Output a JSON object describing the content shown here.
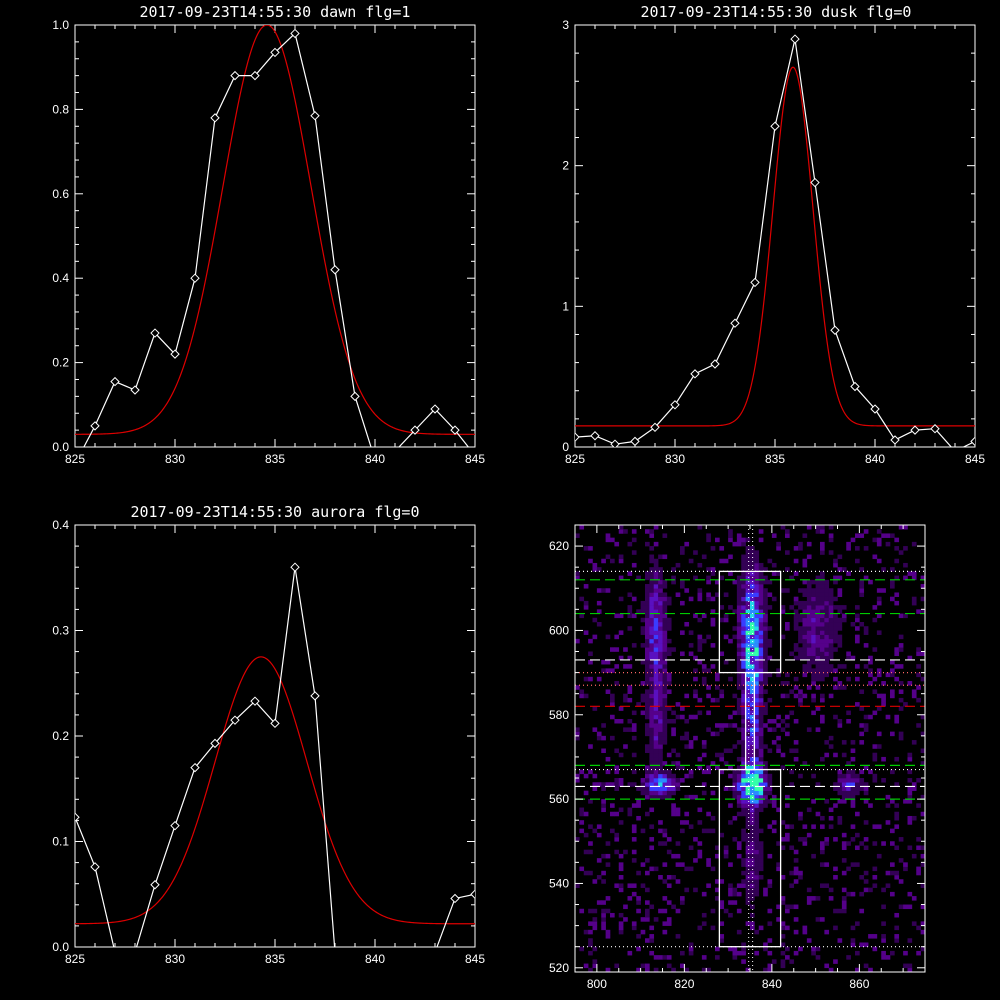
{
  "colors": {
    "background": "#000000",
    "axis": "#ffffff",
    "data_line": "#ffffff",
    "fit_line": "#dd0000",
    "green_lines": "#00cc00",
    "red_line": "#dd0000",
    "white_dashed": "#ffffff"
  },
  "chart_data": [
    {
      "id": "dawn",
      "type": "line",
      "title": "2017-09-23T14:55:30 dawn flg=1",
      "xlim": [
        825,
        845
      ],
      "ylim": [
        0,
        1.0
      ],
      "xticks": [
        "825",
        "830",
        "835",
        "840",
        "845"
      ],
      "yticks": [
        "0.0",
        "0.2",
        "0.4",
        "0.6",
        "0.8",
        "1.0"
      ],
      "series": [
        {
          "role": "data",
          "marker": "diamond",
          "x": [
            825,
            826,
            827,
            828,
            829,
            830,
            831,
            832,
            833,
            834,
            835,
            836,
            837,
            838,
            839,
            840,
            841,
            842,
            843,
            844,
            845
          ],
          "y": [
            -0.04,
            0.05,
            0.155,
            0.135,
            0.27,
            0.22,
            0.4,
            0.78,
            0.88,
            0.88,
            0.935,
            0.98,
            0.785,
            0.42,
            0.12,
            -0.03,
            -0.01,
            0.04,
            0.09,
            0.04,
            -0.02
          ]
        },
        {
          "role": "fit",
          "gaussian": {
            "amp": 0.97,
            "center": 834.6,
            "sigma": 2.2,
            "offset": 0.03
          }
        }
      ]
    },
    {
      "id": "dusk",
      "type": "line",
      "title": "2017-09-23T14:55:30 dusk flg=0",
      "xlim": [
        825,
        845
      ],
      "ylim": [
        0,
        3
      ],
      "xticks": [
        "825",
        "830",
        "835",
        "840",
        "845"
      ],
      "yticks": [
        "0",
        "1",
        "2",
        "3"
      ],
      "series": [
        {
          "role": "data",
          "marker": "diamond",
          "x": [
            825,
            826,
            827,
            828,
            829,
            830,
            831,
            832,
            833,
            834,
            835,
            836,
            837,
            838,
            839,
            840,
            841,
            842,
            843,
            844,
            845
          ],
          "y": [
            0.07,
            0.08,
            0.02,
            0.04,
            0.14,
            0.3,
            0.52,
            0.59,
            0.88,
            1.17,
            2.28,
            2.9,
            1.88,
            0.83,
            0.43,
            0.27,
            0.05,
            0.12,
            0.13,
            -0.03,
            0.04
          ]
        },
        {
          "role": "fit",
          "gaussian": {
            "amp": 2.55,
            "center": 835.9,
            "sigma": 1.0,
            "offset": 0.15
          }
        }
      ]
    },
    {
      "id": "aurora",
      "type": "line",
      "title": "2017-09-23T14:55:30 aurora flg=0",
      "xlim": [
        825,
        845
      ],
      "ylim": [
        0,
        0.4
      ],
      "xticks": [
        "825",
        "830",
        "835",
        "840",
        "845"
      ],
      "yticks": [
        "0.0",
        "0.1",
        "0.2",
        "0.3",
        "0.4"
      ],
      "series": [
        {
          "role": "data",
          "marker": "diamond",
          "x": [
            825,
            826,
            827,
            828,
            829,
            830,
            831,
            832,
            833,
            834,
            835,
            836,
            837,
            838,
            839,
            840,
            841,
            842,
            843,
            844,
            845
          ],
          "y": [
            0.123,
            0.076,
            -0.005,
            -0.005,
            0.059,
            0.115,
            0.17,
            0.193,
            0.215,
            0.233,
            0.212,
            0.36,
            0.238,
            -0.005,
            -0.005,
            -0.005,
            -0.005,
            -0.005,
            -0.005,
            0.046,
            0.05
          ]
        },
        {
          "role": "fit",
          "gaussian": {
            "amp": 0.253,
            "center": 834.3,
            "sigma": 2.3,
            "offset": 0.022
          }
        }
      ]
    },
    {
      "id": "image",
      "type": "heatmap",
      "title": "",
      "xlim": [
        795,
        875
      ],
      "ylim": [
        519,
        625
      ],
      "xticks": [
        {
          "v": 800,
          "label": "800"
        },
        {
          "v": 820,
          "label": "820"
        },
        {
          "v": 840,
          "label": "840"
        },
        {
          "v": 860,
          "label": "860"
        }
      ],
      "yticks": [
        {
          "v": 520,
          "label": "520"
        },
        {
          "v": 540,
          "label": "540"
        },
        {
          "v": 560,
          "label": "560"
        },
        {
          "v": 580,
          "label": "580"
        },
        {
          "v": 600,
          "label": "600"
        },
        {
          "v": 620,
          "label": "620"
        }
      ],
      "colormap": [
        "#000000",
        "#330055",
        "#55008a",
        "#5a10c0",
        "#3a3cff",
        "#2a8cff",
        "#22d8e8",
        "#33ffaa"
      ],
      "hot_spots": [
        {
          "x": 835,
          "y": 600,
          "sx": 2.0,
          "sy": 10.0,
          "amp": 0.65
        },
        {
          "x": 835,
          "y": 580,
          "sx": 1.5,
          "sy": 12.0,
          "amp": 0.45
        },
        {
          "x": 835,
          "y": 563,
          "sx": 2.2,
          "sy": 3.0,
          "amp": 1.0
        },
        {
          "x": 814,
          "y": 563,
          "sx": 2.5,
          "sy": 1.6,
          "amp": 0.7
        },
        {
          "x": 813,
          "y": 600,
          "sx": 1.8,
          "sy": 10.0,
          "amp": 0.42
        },
        {
          "x": 813,
          "y": 578,
          "sx": 1.5,
          "sy": 8.0,
          "amp": 0.3
        },
        {
          "x": 857,
          "y": 563,
          "sx": 2.0,
          "sy": 2.0,
          "amp": 0.4
        },
        {
          "x": 850,
          "y": 600,
          "sx": 3.5,
          "sy": 8.0,
          "amp": 0.28
        },
        {
          "x": 835,
          "y": 545,
          "sx": 1.5,
          "sy": 8.0,
          "amp": 0.25
        }
      ],
      "noise_density": 0.16,
      "boxes": [
        {
          "x0": 828,
          "x1": 842,
          "y0": 590,
          "y1": 614
        },
        {
          "x0": 828,
          "x1": 842,
          "y0": 525,
          "y1": 567
        }
      ],
      "connector": {
        "x0": 834,
        "x1": 836,
        "y0": 567,
        "y1": 590
      },
      "hlines": [
        {
          "y": 612,
          "color": "#00cc00",
          "style": "dash"
        },
        {
          "y": 604,
          "color": "#00cc00",
          "style": "dash"
        },
        {
          "y": 593,
          "color": "#ffffff",
          "style": "dash"
        },
        {
          "y": 582,
          "color": "#dd0000",
          "style": "dash"
        },
        {
          "y": 568,
          "color": "#00cc00",
          "style": "dash"
        },
        {
          "y": 563,
          "color": "#ffffff",
          "style": "dash"
        },
        {
          "y": 560,
          "color": "#00cc00",
          "style": "dash"
        },
        {
          "y": 614,
          "color": "#ffffff",
          "style": "dot"
        },
        {
          "y": 590,
          "color": "#ff6666",
          "style": "dot"
        },
        {
          "y": 587,
          "color": "#ff6666",
          "style": "dot"
        },
        {
          "y": 567,
          "color": "#ffffff",
          "style": "dot"
        },
        {
          "y": 525,
          "color": "#ffffff",
          "style": "dot"
        }
      ],
      "vlines": [
        {
          "x": 834.7,
          "color": "#ffffff",
          "style": "dot"
        },
        {
          "x": 835.6,
          "color": "#ffffff",
          "style": "dot"
        }
      ]
    }
  ]
}
